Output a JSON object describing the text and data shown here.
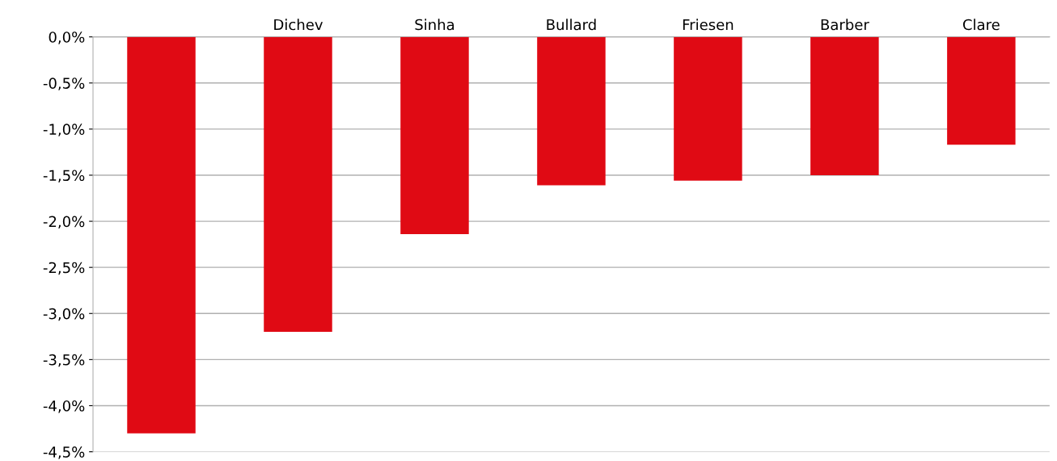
{
  "chart_data": {
    "type": "bar",
    "categories": [
      null,
      "Dichev",
      "Sinha",
      "Bullard",
      "Friesen",
      "Barber",
      "Clare"
    ],
    "values": [
      -4.3,
      -3.2,
      -2.14,
      -1.61,
      -1.56,
      -1.5,
      -1.17
    ],
    "color": "#e00a14",
    "ylim": [
      -4.5,
      0
    ],
    "yticks": [
      {
        "value": 0,
        "label": "0,0%"
      },
      {
        "value": -0.5,
        "label": "-0,5%"
      },
      {
        "value": -1,
        "label": "-1,0%"
      },
      {
        "value": -1.5,
        "label": "-1,5%"
      },
      {
        "value": -2,
        "label": "-2,0%"
      },
      {
        "value": -2.5,
        "label": "-2,5%"
      },
      {
        "value": -3,
        "label": "-3,0%"
      },
      {
        "value": -3.5,
        "label": "-3,5%"
      },
      {
        "value": -4,
        "label": "-4,0%"
      },
      {
        "value": -4.5,
        "label": "-4,5%"
      }
    ],
    "grid": "y"
  }
}
